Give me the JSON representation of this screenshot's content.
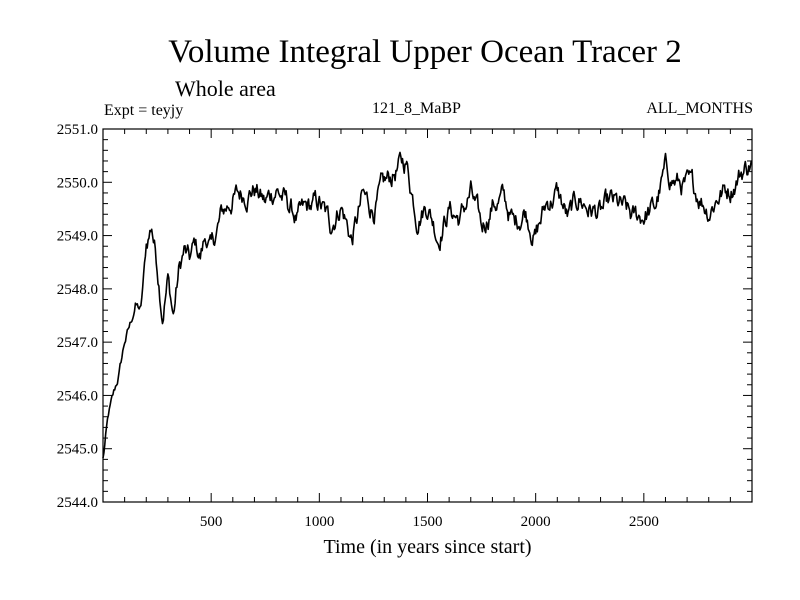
{
  "chart_data": {
    "type": "line",
    "title": "Volume Integral Upper Ocean Tracer 2",
    "subtitle": "Whole area",
    "annotations": {
      "left": "Expt = teyjy",
      "center": "121_8_MaBP",
      "right": "ALL_MONTHS"
    },
    "xlabel": "Time (in years since start)",
    "ylabel": "",
    "xlim": [
      0,
      3000
    ],
    "ylim": [
      2544.0,
      2551.0
    ],
    "x_ticks": [
      500,
      1000,
      1500,
      2000,
      2500
    ],
    "y_ticks": [
      2544.0,
      2545.0,
      2546.0,
      2547.0,
      2548.0,
      2549.0,
      2550.0,
      2551.0
    ],
    "y_tick_labels": [
      "2544.0",
      "2545.0",
      "2546.0",
      "2547.0",
      "2548.0",
      "2549.0",
      "2550.0",
      "2551.0"
    ],
    "series": [
      {
        "name": "Volume Integral Upper Ocean Tracer 2",
        "color": "#000000",
        "x": [
          0,
          25,
          50,
          75,
          100,
          125,
          150,
          175,
          200,
          225,
          250,
          275,
          300,
          325,
          350,
          375,
          400,
          425,
          450,
          475,
          500,
          550,
          600,
          650,
          700,
          750,
          800,
          850,
          900,
          950,
          1000,
          1050,
          1100,
          1150,
          1200,
          1250,
          1300,
          1350,
          1400,
          1450,
          1500,
          1550,
          1600,
          1650,
          1700,
          1750,
          1800,
          1850,
          1900,
          1950,
          2000,
          2050,
          2100,
          2150,
          2200,
          2250,
          2300,
          2350,
          2400,
          2450,
          2500,
          2550,
          2600,
          2650,
          2700,
          2750,
          2800,
          2850,
          2900,
          2950,
          3000
        ],
        "values": [
          2544.8,
          2545.6,
          2546.0,
          2546.4,
          2547.0,
          2547.3,
          2547.7,
          2547.6,
          2548.8,
          2549.2,
          2548.5,
          2547.6,
          2548.2,
          2547.5,
          2548.3,
          2548.7,
          2548.5,
          2548.8,
          2548.6,
          2549.0,
          2548.7,
          2549.4,
          2549.7,
          2549.8,
          2549.9,
          2549.6,
          2549.9,
          2549.6,
          2549.3,
          2549.5,
          2549.6,
          2549.2,
          2549.6,
          2548.9,
          2549.7,
          2549.5,
          2549.9,
          2550.2,
          2550.4,
          2549.4,
          2549.6,
          2549.0,
          2549.5,
          2549.3,
          2549.8,
          2549.1,
          2549.6,
          2549.7,
          2549.2,
          2549.5,
          2549.0,
          2549.6,
          2549.8,
          2549.3,
          2549.7,
          2549.5,
          2549.4,
          2549.6,
          2549.5,
          2549.3,
          2549.4,
          2549.5,
          2550.2,
          2550.0,
          2549.9,
          2549.8,
          2549.5,
          2549.8,
          2549.9,
          2550.2,
          2550.4
        ]
      }
    ]
  }
}
